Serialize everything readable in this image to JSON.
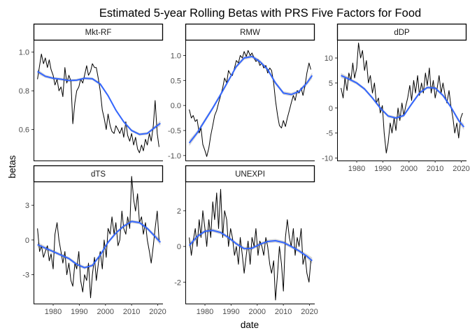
{
  "colors": {
    "background": "#ffffff",
    "raw_series": "#000000",
    "smooth_line": "#3366ff",
    "confidence_band": "#999999"
  },
  "chart_data": {
    "type": "line",
    "title": "Estimated 5-year Rolling Betas with PRS Five Factors for Food",
    "xlabel": "date",
    "ylabel": "betas",
    "x_ticks": [
      "1980",
      "1990",
      "2000",
      "2010",
      "2020"
    ],
    "xlim": [
      1972.5,
      2022
    ],
    "grid": false,
    "layout": "facet_wrap, 3 columns, free y scales",
    "panels": [
      {
        "name": "Mkt-RF",
        "ylim": [
          0.44,
          1.06
        ],
        "yticks": [
          0.6,
          0.8,
          1.0
        ],
        "ytick_labels": [
          "0.6",
          "0.8",
          "1.0"
        ],
        "raw": {
          "x": [
            1974.0,
            1974.8,
            1975.5,
            1976.3,
            1977.0,
            1977.8,
            1978.5,
            1979.2,
            1980.0,
            1980.7,
            1981.5,
            1982.2,
            1983.0,
            1983.7,
            1984.5,
            1985.2,
            1986.0,
            1986.8,
            1987.5,
            1988.3,
            1989.0,
            1989.8,
            1990.5,
            1991.3,
            1992.0,
            1992.8,
            1993.5,
            1994.3,
            1995.0,
            1995.8,
            1996.5,
            1997.3,
            1998.0,
            1998.8,
            1999.5,
            2000.3,
            2001.0,
            2001.8,
            2002.5,
            2003.3,
            2004.0,
            2004.8,
            2005.5,
            2006.3,
            2007.0,
            2007.8,
            2008.5,
            2009.3,
            2010.0,
            2010.8,
            2011.5,
            2012.3,
            2013.0,
            2013.8,
            2014.5,
            2015.3,
            2016.0,
            2016.8,
            2017.5,
            2018.3,
            2019.0,
            2019.8,
            2020.5
          ],
          "y": [
            0.86,
            0.93,
            0.99,
            0.94,
            0.97,
            0.92,
            0.96,
            0.91,
            0.88,
            0.83,
            0.86,
            0.8,
            0.82,
            0.77,
            0.92,
            0.84,
            0.88,
            0.85,
            0.63,
            0.74,
            0.8,
            0.82,
            0.86,
            0.84,
            0.88,
            0.93,
            0.88,
            0.9,
            0.94,
            0.92,
            0.92,
            0.86,
            0.8,
            0.7,
            0.66,
            0.6,
            0.68,
            0.62,
            0.59,
            0.58,
            0.62,
            0.6,
            0.58,
            0.61,
            0.56,
            0.64,
            0.57,
            0.54,
            0.58,
            0.52,
            0.56,
            0.5,
            0.48,
            0.52,
            0.49,
            0.55,
            0.52,
            0.58,
            0.54,
            0.62,
            0.75,
            0.58,
            0.51
          ]
        },
        "smooth": {
          "x": [
            1974,
            1977,
            1980,
            1983,
            1986,
            1989,
            1992,
            1995,
            1998,
            2001,
            2004,
            2007,
            2010,
            2013,
            2016,
            2019,
            2021
          ],
          "y": [
            0.9,
            0.875,
            0.865,
            0.86,
            0.853,
            0.855,
            0.865,
            0.862,
            0.835,
            0.775,
            0.7,
            0.64,
            0.595,
            0.575,
            0.58,
            0.612,
            0.632
          ],
          "se": [
            0.012,
            0.008,
            0.007,
            0.007,
            0.007,
            0.007,
            0.007,
            0.007,
            0.007,
            0.007,
            0.007,
            0.007,
            0.007,
            0.007,
            0.007,
            0.009,
            0.014
          ]
        }
      },
      {
        "name": "RMW",
        "ylim": [
          -1.1,
          1.3
        ],
        "yticks": [
          -1.0,
          -0.5,
          0.0,
          0.5,
          1.0
        ],
        "ytick_labels": [
          "-1.0",
          "-0.5",
          "0.0",
          "0.5",
          "1.0"
        ],
        "raw": {
          "x": [
            1974.0,
            1974.8,
            1975.5,
            1976.3,
            1977.0,
            1977.8,
            1978.5,
            1979.2,
            1980.0,
            1980.7,
            1981.5,
            1982.2,
            1983.0,
            1983.7,
            1984.5,
            1985.2,
            1986.0,
            1986.8,
            1987.5,
            1988.3,
            1989.0,
            1989.8,
            1990.5,
            1991.3,
            1992.0,
            1992.8,
            1993.5,
            1994.3,
            1995.0,
            1995.8,
            1996.5,
            1997.3,
            1998.0,
            1998.8,
            1999.5,
            2000.3,
            2001.0,
            2001.8,
            2002.5,
            2003.3,
            2004.0,
            2004.8,
            2005.5,
            2006.3,
            2007.0,
            2007.8,
            2008.5,
            2009.3,
            2010.0,
            2010.8,
            2011.5,
            2012.3,
            2013.0,
            2013.8,
            2014.5,
            2015.3,
            2016.0,
            2016.8,
            2017.5,
            2018.3,
            2019.0,
            2019.8,
            2020.5
          ],
          "y": [
            -0.08,
            -0.25,
            -0.2,
            -0.32,
            -0.28,
            -0.55,
            -0.45,
            -0.78,
            -0.9,
            -1.02,
            -0.85,
            -0.6,
            -0.4,
            -0.2,
            -0.1,
            0.05,
            0.2,
            0.35,
            0.55,
            0.45,
            0.7,
            0.62,
            0.6,
            0.75,
            0.9,
            0.85,
            1.0,
            0.95,
            1.08,
            0.98,
            1.1,
            1.0,
            1.05,
            0.95,
            0.88,
            0.92,
            0.8,
            0.85,
            0.75,
            0.8,
            0.65,
            0.75,
            0.7,
            0.45,
            0.1,
            -0.2,
            -0.4,
            -0.45,
            -0.3,
            -0.42,
            -0.25,
            -0.1,
            0.05,
            0.2,
            0.1,
            0.3,
            0.25,
            0.35,
            0.2,
            0.4,
            0.65,
            0.85,
            0.72
          ]
        },
        "smooth": {
          "x": [
            1974,
            1977,
            1980,
            1983,
            1986,
            1989,
            1992,
            1995,
            1998,
            2001,
            2004,
            2007,
            2010,
            2013,
            2016,
            2019,
            2021
          ],
          "y": [
            -0.75,
            -0.55,
            -0.3,
            -0.05,
            0.22,
            0.5,
            0.78,
            0.95,
            0.98,
            0.88,
            0.72,
            0.45,
            0.25,
            0.22,
            0.28,
            0.45,
            0.6
          ],
          "se": [
            0.06,
            0.045,
            0.04,
            0.035,
            0.035,
            0.035,
            0.035,
            0.035,
            0.035,
            0.035,
            0.035,
            0.035,
            0.035,
            0.035,
            0.035,
            0.045,
            0.06
          ]
        }
      },
      {
        "name": "dDP",
        "ylim": [
          -10.5,
          13.5
        ],
        "yticks": [
          -10,
          -5,
          0,
          5,
          10
        ],
        "ytick_labels": [
          "-10",
          "-5",
          "0",
          "5",
          "10"
        ],
        "raw": {
          "x": [
            1974.0,
            1974.8,
            1975.5,
            1976.3,
            1977.0,
            1977.8,
            1978.5,
            1979.2,
            1980.0,
            1980.7,
            1981.5,
            1982.2,
            1983.0,
            1983.7,
            1984.5,
            1985.2,
            1986.0,
            1986.8,
            1987.5,
            1988.3,
            1989.0,
            1989.8,
            1990.5,
            1991.3,
            1992.0,
            1992.8,
            1993.5,
            1994.3,
            1995.0,
            1995.8,
            1996.5,
            1997.3,
            1998.0,
            1998.8,
            1999.5,
            2000.3,
            2001.0,
            2001.8,
            2002.5,
            2003.3,
            2004.0,
            2004.8,
            2005.5,
            2006.3,
            2007.0,
            2007.8,
            2008.5,
            2009.3,
            2010.0,
            2010.8,
            2011.5,
            2012.3,
            2013.0,
            2013.8,
            2014.5,
            2015.3,
            2016.0,
            2016.8,
            2017.5,
            2018.3,
            2019.0,
            2019.8,
            2020.5
          ],
          "y": [
            4.0,
            2.0,
            6.0,
            3.5,
            7.0,
            5.5,
            9.0,
            6.0,
            8.0,
            13.0,
            10.0,
            11.5,
            7.5,
            9.5,
            5.0,
            6.5,
            3.0,
            5.0,
            1.0,
            2.0,
            -1.0,
            0.5,
            -5.0,
            -9.0,
            -7.0,
            -3.0,
            -5.0,
            -2.0,
            -4.5,
            0.0,
            -2.5,
            1.0,
            -1.5,
            0.5,
            2.0,
            4.5,
            1.5,
            5.5,
            3.0,
            6.5,
            2.5,
            5.0,
            3.0,
            7.0,
            4.5,
            8.0,
            3.0,
            5.5,
            2.0,
            4.0,
            6.5,
            3.0,
            5.0,
            2.5,
            1.0,
            3.5,
            0.5,
            -2.0,
            -5.0,
            -3.0,
            -6.0,
            -2.0,
            -1.0
          ]
        },
        "smooth": {
          "x": [
            1974,
            1977,
            1980,
            1983,
            1986,
            1989,
            1992,
            1995,
            1998,
            2001,
            2004,
            2007,
            2010,
            2013,
            2016,
            2019,
            2021
          ],
          "y": [
            6.5,
            5.8,
            5.0,
            3.8,
            2.0,
            0.0,
            -1.6,
            -2.0,
            -1.5,
            0.8,
            3.0,
            4.1,
            4.0,
            2.5,
            0.2,
            -2.5,
            -3.8
          ],
          "se": [
            0.5,
            0.35,
            0.3,
            0.3,
            0.3,
            0.3,
            0.3,
            0.3,
            0.3,
            0.3,
            0.3,
            0.3,
            0.3,
            0.3,
            0.3,
            0.4,
            0.6
          ]
        }
      },
      {
        "name": "dTS",
        "ylim": [
          -5.5,
          5.0
        ],
        "yticks": [
          -3,
          0,
          3
        ],
        "ytick_labels": [
          "-3",
          "0",
          "3"
        ],
        "raw": {
          "x": [
            1974.0,
            1974.8,
            1975.5,
            1976.3,
            1977.0,
            1977.8,
            1978.5,
            1979.2,
            1980.0,
            1980.7,
            1981.5,
            1982.2,
            1983.0,
            1983.7,
            1984.5,
            1985.2,
            1986.0,
            1986.8,
            1987.5,
            1988.3,
            1989.0,
            1989.8,
            1990.5,
            1991.3,
            1992.0,
            1992.8,
            1993.5,
            1994.3,
            1995.0,
            1995.8,
            1996.5,
            1997.3,
            1998.0,
            1998.8,
            1999.5,
            2000.3,
            2001.0,
            2001.8,
            2002.5,
            2003.3,
            2004.0,
            2004.8,
            2005.5,
            2006.3,
            2007.0,
            2007.8,
            2008.5,
            2009.3,
            2010.0,
            2010.8,
            2011.5,
            2012.3,
            2013.0,
            2013.8,
            2014.5,
            2015.3,
            2016.0,
            2016.8,
            2017.5,
            2018.3,
            2019.0,
            2019.8,
            2020.5
          ],
          "y": [
            1.0,
            -1.0,
            -0.5,
            -1.5,
            -1.0,
            -0.5,
            -1.8,
            -1.2,
            -2.5,
            0.5,
            1.5,
            0.0,
            -1.0,
            -2.0,
            -1.0,
            -3.0,
            -2.0,
            -3.5,
            -4.0,
            -2.0,
            -2.5,
            -1.0,
            -3.5,
            -4.5,
            -3.0,
            -3.5,
            -2.0,
            -5.0,
            -3.0,
            -1.5,
            -3.5,
            -2.0,
            -1.0,
            -2.5,
            0.0,
            -1.5,
            1.0,
            0.5,
            2.0,
            0.5,
            1.5,
            -0.5,
            0.0,
            2.5,
            1.0,
            0.5,
            2.0,
            1.0,
            5.5,
            3.5,
            2.5,
            4.0,
            1.5,
            2.0,
            0.5,
            1.5,
            0.0,
            -1.0,
            -2.0,
            -0.5,
            1.0,
            2.5,
            0.0
          ]
        },
        "smooth": {
          "x": [
            1974,
            1977,
            1980,
            1983,
            1986,
            1989,
            1992,
            1995,
            1998,
            2001,
            2004,
            2007,
            2010,
            2013,
            2016,
            2019,
            2021
          ],
          "y": [
            -0.4,
            -0.7,
            -1.0,
            -1.3,
            -1.6,
            -2.1,
            -2.4,
            -2.2,
            -1.3,
            -0.2,
            0.6,
            1.2,
            1.6,
            1.5,
            1.0,
            0.3,
            -0.2
          ],
          "se": [
            0.22,
            0.16,
            0.14,
            0.14,
            0.14,
            0.14,
            0.14,
            0.14,
            0.14,
            0.14,
            0.14,
            0.14,
            0.14,
            0.14,
            0.14,
            0.18,
            0.26
          ]
        }
      },
      {
        "name": "UNEXPI",
        "ylim": [
          -3.2,
          3.6
        ],
        "yticks": [
          -2,
          0,
          2
        ],
        "ytick_labels": [
          "-2",
          "0",
          "2"
        ],
        "raw": {
          "x": [
            1974.0,
            1974.8,
            1975.5,
            1976.3,
            1977.0,
            1977.8,
            1978.5,
            1979.2,
            1980.0,
            1980.7,
            1981.5,
            1982.2,
            1983.0,
            1983.7,
            1984.5,
            1985.2,
            1986.0,
            1986.8,
            1987.5,
            1988.3,
            1989.0,
            1989.8,
            1990.5,
            1991.3,
            1992.0,
            1992.8,
            1993.5,
            1994.3,
            1995.0,
            1995.8,
            1996.5,
            1997.3,
            1998.0,
            1998.8,
            1999.5,
            2000.3,
            2001.0,
            2001.8,
            2002.5,
            2003.3,
            2004.0,
            2004.8,
            2005.5,
            2006.3,
            2007.0,
            2007.8,
            2008.5,
            2009.3,
            2010.0,
            2010.8,
            2011.5,
            2012.3,
            2013.0,
            2013.8,
            2014.5,
            2015.3,
            2016.0,
            2016.8,
            2017.5,
            2018.3,
            2019.0,
            2019.8,
            2020.5
          ],
          "y": [
            0.5,
            -0.5,
            0.3,
            1.0,
            0.0,
            1.5,
            0.5,
            2.0,
            1.0,
            0.0,
            1.5,
            0.5,
            2.5,
            1.5,
            3.0,
            1.0,
            3.2,
            0.5,
            2.0,
            1.5,
            0.0,
            1.0,
            0.5,
            -0.5,
            0.0,
            -1.0,
            0.5,
            -0.5,
            -1.5,
            -0.5,
            0.3,
            -1.0,
            0.5,
            0.0,
            1.0,
            -0.5,
            0.3,
            0.0,
            -0.5,
            0.5,
            0.0,
            -1.0,
            -1.5,
            -0.8,
            -3.0,
            -1.5,
            0.0,
            -1.0,
            -2.5,
            0.5,
            1.5,
            0.5,
            0.0,
            1.0,
            -0.5,
            0.5,
            0.0,
            1.0,
            -1.0,
            -0.5,
            -1.5,
            -2.0,
            -0.8
          ]
        },
        "smooth": {
          "x": [
            1974,
            1977,
            1980,
            1983,
            1986,
            1989,
            1992,
            1995,
            1998,
            2001,
            2004,
            2007,
            2010,
            2013,
            2016,
            2019,
            2021
          ],
          "y": [
            0.05,
            0.55,
            0.85,
            0.9,
            0.78,
            0.5,
            0.15,
            -0.12,
            -0.1,
            0.12,
            0.28,
            0.32,
            0.22,
            0.0,
            -0.25,
            -0.55,
            -0.8
          ],
          "se": [
            0.16,
            0.11,
            0.1,
            0.1,
            0.1,
            0.1,
            0.1,
            0.1,
            0.1,
            0.1,
            0.1,
            0.1,
            0.1,
            0.1,
            0.1,
            0.13,
            0.18
          ]
        }
      }
    ]
  }
}
